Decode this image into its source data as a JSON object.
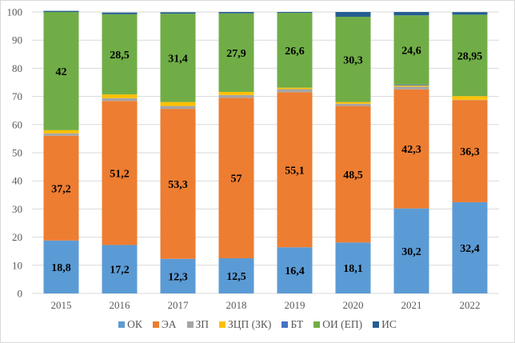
{
  "chart_data": {
    "type": "bar",
    "stacked": true,
    "title": "",
    "xlabel": "",
    "ylabel": "",
    "ylim": [
      0,
      100
    ],
    "yticks": [
      0,
      10,
      20,
      30,
      40,
      50,
      60,
      70,
      80,
      90,
      100
    ],
    "grid": true,
    "legend_position": "bottom",
    "categories": [
      "2015",
      "2016",
      "2017",
      "2018",
      "2019",
      "2020",
      "2021",
      "2022"
    ],
    "series": [
      {
        "name": "ОК",
        "color": "#5b9bd5",
        "values": [
          18.8,
          17.2,
          12.3,
          12.5,
          16.4,
          18.1,
          30.2,
          32.4
        ],
        "labels": [
          "18,8",
          "17,2",
          "12,3",
          "12,5",
          "16,4",
          "18,1",
          "30,2",
          "32,4"
        ]
      },
      {
        "name": "ЭА",
        "color": "#ed7d31",
        "values": [
          37.2,
          51.2,
          53.3,
          57,
          55.1,
          48.5,
          42.3,
          36.3
        ],
        "labels": [
          "37,2",
          "51,2",
          "53,3",
          "57",
          "55,1",
          "48,5",
          "42,3",
          "36,3"
        ]
      },
      {
        "name": "ЗП",
        "color": "#a5a5a5",
        "values": [
          0.9,
          1.0,
          1.0,
          1.0,
          1.1,
          0.8,
          1.0,
          0.1
        ],
        "labels": null
      },
      {
        "name": "ЗЦП (ЗК)",
        "color": "#ffc000",
        "values": [
          1.1,
          1.3,
          1.4,
          1.1,
          0.5,
          0.6,
          0.4,
          1.3
        ],
        "labels": null
      },
      {
        "name": "БТ",
        "color": "#4472c4",
        "values": [
          0,
          0,
          0,
          0,
          0,
          0,
          0.3,
          0
        ],
        "labels": null
      },
      {
        "name": "ОИ (ЕП)",
        "color": "#70ad47",
        "values": [
          42,
          28.5,
          31.4,
          27.9,
          26.6,
          30.3,
          24.6,
          28.95
        ],
        "labels": [
          "42",
          "28,5",
          "31,4",
          "27,9",
          "26,6",
          "30,3",
          "24,6",
          "28,95"
        ]
      },
      {
        "name": "ИС",
        "color": "#255e91",
        "values": [
          0.4,
          0.6,
          0.5,
          0.5,
          0.3,
          1.7,
          1.2,
          0.9
        ],
        "labels": null
      }
    ]
  }
}
